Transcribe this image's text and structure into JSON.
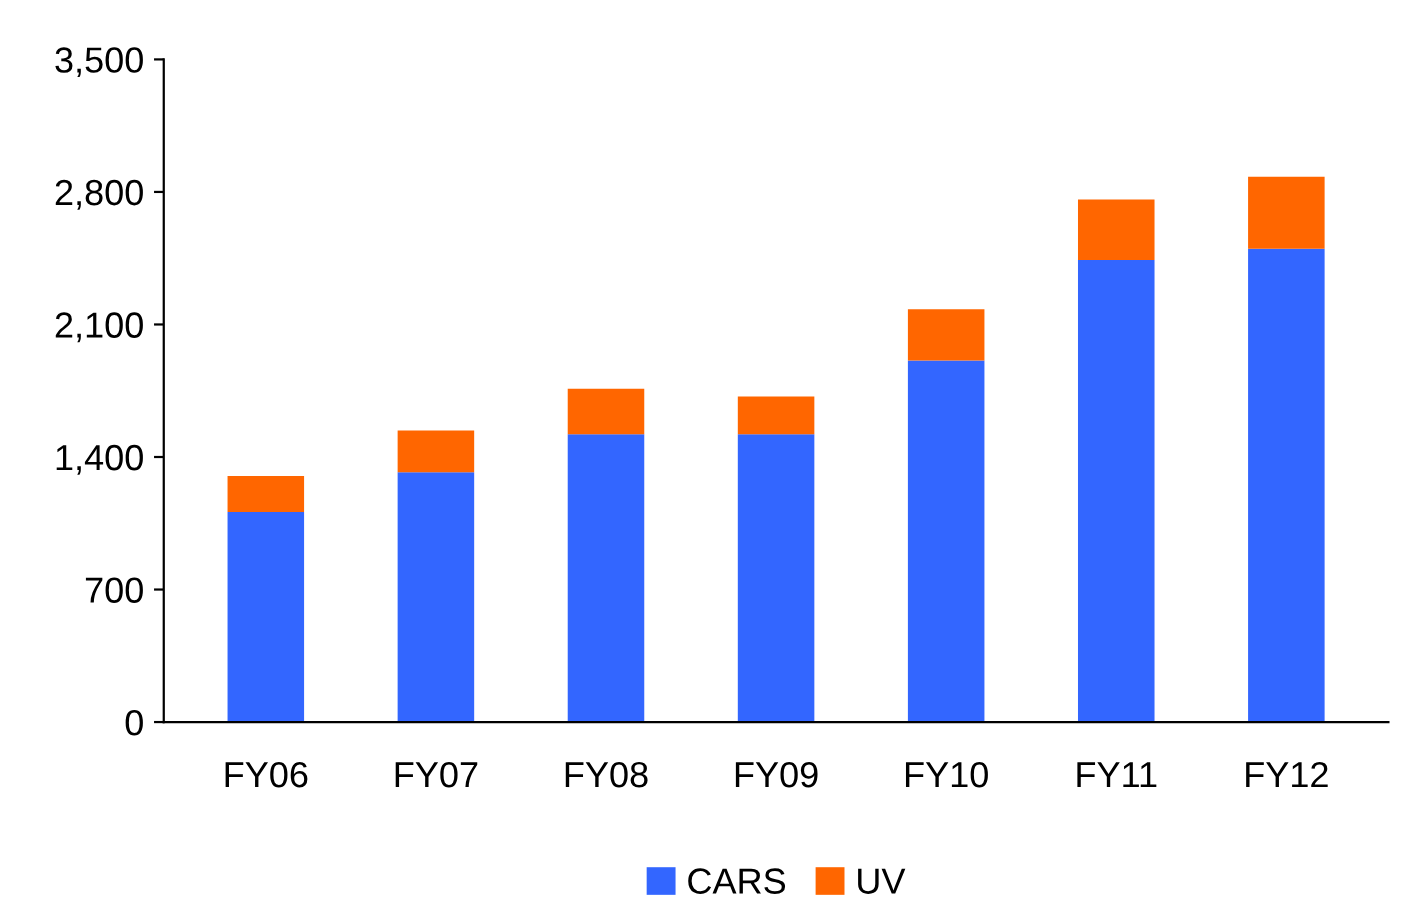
{
  "chart_data": {
    "type": "bar",
    "stacked": true,
    "categories": [
      "FY06",
      "FY07",
      "FY08",
      "FY09",
      "FY10",
      "FY11",
      "FY12"
    ],
    "series": [
      {
        "name": "CARS",
        "color": "#3366ff",
        "values": [
          1110,
          1320,
          1520,
          1520,
          1910,
          2440,
          2500
        ]
      },
      {
        "name": "UV",
        "color": "#ff6600",
        "values": [
          190,
          220,
          240,
          200,
          270,
          320,
          380
        ]
      }
    ],
    "ylim": [
      0,
      3500
    ],
    "yticks": [
      0,
      {
        "value": 700,
        "label": "700"
      },
      {
        "value": 1400,
        "label": "1,400"
      },
      {
        "value": 2100,
        "label": "2,100"
      },
      {
        "value": 2800,
        "label": "2,800"
      },
      {
        "value": 3500,
        "label": "3,500"
      }
    ],
    "grid": false,
    "legend": "bottom"
  }
}
